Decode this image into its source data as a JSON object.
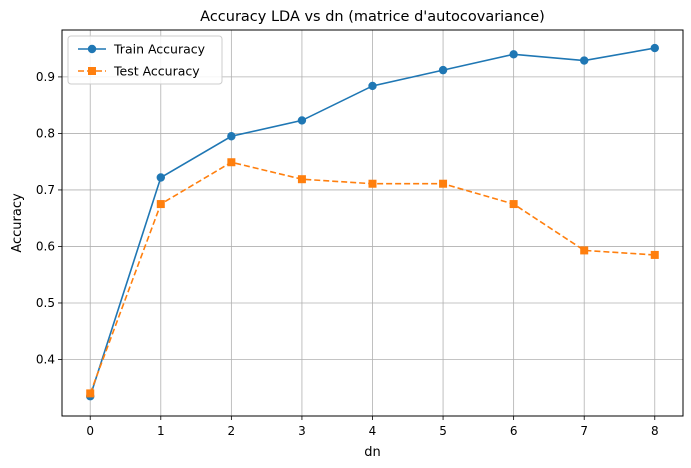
{
  "chart_data": {
    "type": "line",
    "title": "Accuracy LDA vs dn (matrice d'autocovariance)",
    "xlabel": "dn",
    "ylabel": "Accuracy",
    "x": [
      0,
      1,
      2,
      3,
      4,
      5,
      6,
      7,
      8
    ],
    "xlim": [
      -0.4,
      8.4
    ],
    "ylim": [
      0.3,
      0.983
    ],
    "xticks": [
      0,
      1,
      2,
      3,
      4,
      5,
      6,
      7,
      8
    ],
    "yticks": [
      0.4,
      0.5,
      0.6,
      0.7,
      0.8,
      0.9
    ],
    "grid": true,
    "legend_position": "top-left",
    "series": [
      {
        "name": "Train Accuracy",
        "color": "#1f77b4",
        "marker": "circle",
        "linestyle": "solid",
        "values": [
          0.335,
          0.722,
          0.795,
          0.823,
          0.884,
          0.912,
          0.94,
          0.929,
          0.951
        ]
      },
      {
        "name": "Test Accuracy",
        "color": "#ff7f0e",
        "marker": "square",
        "linestyle": "dashed",
        "values": [
          0.34,
          0.675,
          0.749,
          0.719,
          0.711,
          0.711,
          0.675,
          0.593,
          0.585
        ]
      }
    ]
  }
}
